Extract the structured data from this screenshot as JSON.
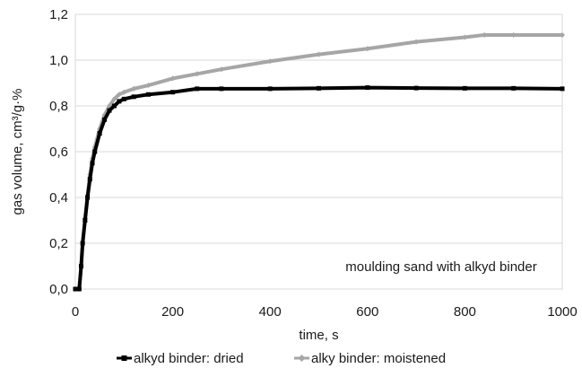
{
  "chart_data": {
    "type": "line",
    "title": "",
    "xlabel": "time, s",
    "ylabel": "gas volume, cm³/g·%",
    "xlim": [
      0,
      1000
    ],
    "ylim": [
      0,
      1.2
    ],
    "x_ticks": [
      0,
      200,
      400,
      600,
      800,
      1000
    ],
    "x_tick_labels": [
      "0",
      "200",
      "400",
      "600",
      "800",
      "1000"
    ],
    "y_ticks": [
      0,
      0.2,
      0.4,
      0.6,
      0.8,
      1.0,
      1.2
    ],
    "y_tick_labels": [
      "0,0",
      "0,2",
      "0,4",
      "0,6",
      "0,8",
      "1,0",
      "1,2"
    ],
    "grid": "horizontal",
    "legend_position": "bottom",
    "annotation": "moulding sand with alkyd binder",
    "series": [
      {
        "name": "alkyd binder: dried",
        "color": "#000000",
        "marker": "square",
        "x": [
          0,
          8,
          12,
          15,
          20,
          25,
          30,
          35,
          40,
          50,
          60,
          70,
          80,
          90,
          100,
          120,
          150,
          200,
          250,
          300,
          400,
          500,
          600,
          700,
          800,
          900,
          1000
        ],
        "y": [
          0.0,
          0.0,
          0.1,
          0.2,
          0.3,
          0.4,
          0.48,
          0.55,
          0.6,
          0.68,
          0.74,
          0.78,
          0.8,
          0.82,
          0.83,
          0.84,
          0.85,
          0.86,
          0.875,
          0.875,
          0.875,
          0.877,
          0.88,
          0.878,
          0.877,
          0.877,
          0.875
        ]
      },
      {
        "name": "alky binder: moistened",
        "color": "#a6a6a6",
        "marker": "diamond",
        "x": [
          0,
          8,
          12,
          15,
          20,
          25,
          30,
          35,
          40,
          50,
          60,
          70,
          80,
          90,
          100,
          120,
          150,
          200,
          250,
          300,
          400,
          500,
          600,
          700,
          800,
          840,
          900,
          1000
        ],
        "y": [
          0.0,
          0.0,
          0.1,
          0.2,
          0.31,
          0.41,
          0.5,
          0.57,
          0.62,
          0.7,
          0.76,
          0.8,
          0.83,
          0.85,
          0.86,
          0.875,
          0.89,
          0.92,
          0.94,
          0.96,
          0.995,
          1.025,
          1.05,
          1.08,
          1.1,
          1.11,
          1.11,
          1.11
        ]
      }
    ]
  }
}
